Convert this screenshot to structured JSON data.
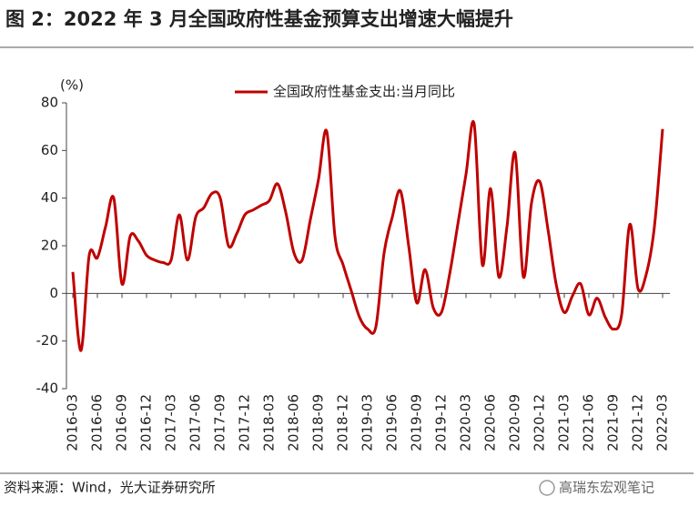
{
  "chart_data": {
    "type": "line",
    "title": "图 2：2022 年 3 月全国政府性基金预算支出增速大幅提升",
    "y_label": "(%)",
    "source": "资料来源：Wind，光大证券研究所",
    "watermark": "高瑞东宏观笔记",
    "categories": [
      "2016-03",
      null,
      null,
      "2016-06",
      null,
      null,
      "2016-09",
      null,
      null,
      "2016-12",
      null,
      null,
      "2017-03",
      null,
      null,
      "2017-06",
      null,
      null,
      "2017-09",
      null,
      null,
      "2017-12",
      null,
      null,
      "2018-03",
      null,
      null,
      "2018-06",
      null,
      null,
      "2018-09",
      null,
      null,
      "2018-12",
      null,
      null,
      "2019-03",
      null,
      null,
      "2019-06",
      null,
      null,
      "2019-09",
      null,
      null,
      "2019-12",
      null,
      null,
      "2020-03",
      null,
      null,
      "2020-06",
      null,
      null,
      "2020-09",
      null,
      null,
      "2020-12",
      null,
      null,
      "2021-03",
      null,
      null,
      "2021-06",
      null,
      null,
      "2021-09",
      null,
      null,
      "2021-12",
      null,
      null,
      "2022-03"
    ],
    "series": [
      {
        "name": "全国政府性基金支出:当月同比",
        "color": "#c00000",
        "values": [
          9,
          -24,
          16,
          15,
          28,
          40,
          4,
          24,
          22,
          16,
          14,
          13,
          14,
          33,
          14,
          32,
          36,
          42,
          40,
          20,
          25,
          33,
          35,
          37,
          39,
          46,
          34,
          17,
          14,
          31,
          48,
          68,
          24,
          12,
          1,
          -10,
          -15,
          -14,
          17,
          32,
          43,
          20,
          -4,
          10,
          -6,
          -8,
          8,
          29,
          50,
          71,
          12,
          44,
          7,
          28,
          59,
          7,
          38,
          47,
          27,
          4,
          -8,
          -1,
          4,
          -9,
          -2,
          -10,
          -15,
          -9,
          29,
          2,
          8,
          28,
          69
        ]
      }
    ],
    "ylim": [
      -40,
      80
    ],
    "yticks": [
      -40,
      -20,
      0,
      20,
      40,
      60,
      80
    ],
    "legend": "top"
  }
}
